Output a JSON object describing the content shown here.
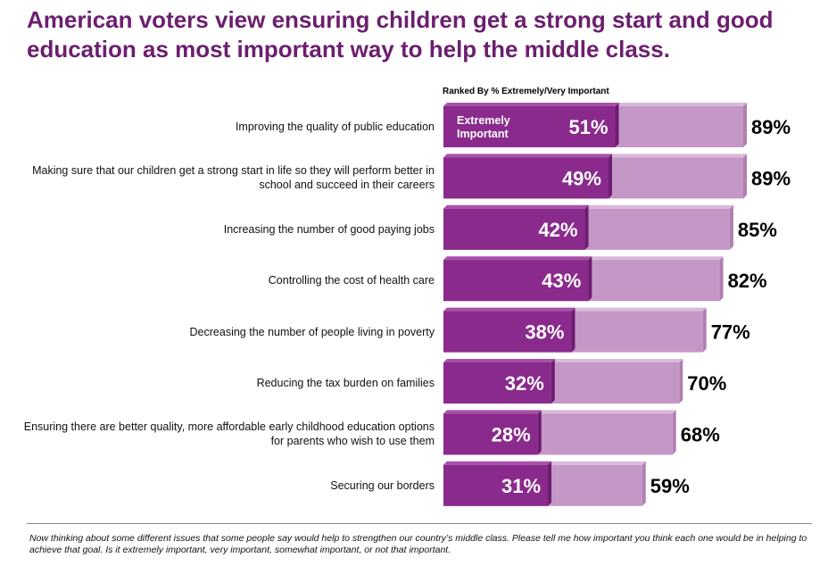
{
  "title": "American voters view ensuring children get a strong start and good education as most important way to help the middle class.",
  "subtitle": "Ranked By % Extremely/Very Important",
  "footnote": "Now thinking about some different issues that some people say would help to strengthen our country’s middle class. Please tell me how important you think each one would be in helping to achieve that goal. Is it extremely important, very important, somewhat important, or not that important.",
  "colors": {
    "extremely": "#8a2a8c",
    "extremely_light": "#a851a8",
    "very": "#c497c6",
    "very_light": "#d9b9da",
    "title": "#6b1f6e"
  },
  "chart_data": {
    "type": "bar",
    "orientation": "horizontal",
    "stacked": true,
    "title": "Ranked By % Extremely/Very Important",
    "series_label": "Extremely Important",
    "categories": [
      "Improving the quality of public education",
      "Making sure that our children get a strong start in life so they will perform better in school and succeed in their careers",
      "Increasing the number of good paying jobs",
      "Controlling the cost of health care",
      "Decreasing the number of people living in poverty",
      "Reducing the tax burden on families",
      "Ensuring there are better quality, more affordable early childhood education options for parents who wish to use them",
      "Securing our borders"
    ],
    "extremely": [
      51,
      49,
      42,
      43,
      38,
      32,
      28,
      31
    ],
    "total": [
      89,
      89,
      85,
      82,
      77,
      70,
      68,
      59
    ],
    "extremely_labels": [
      "51%",
      "49%",
      "42%",
      "43%",
      "38%",
      "32%",
      "28%",
      "31%"
    ],
    "total_labels": [
      "89%",
      "89%",
      "85%",
      "82%",
      "77%",
      "70%",
      "68%",
      "59%"
    ],
    "xlim": [
      0,
      100
    ]
  }
}
